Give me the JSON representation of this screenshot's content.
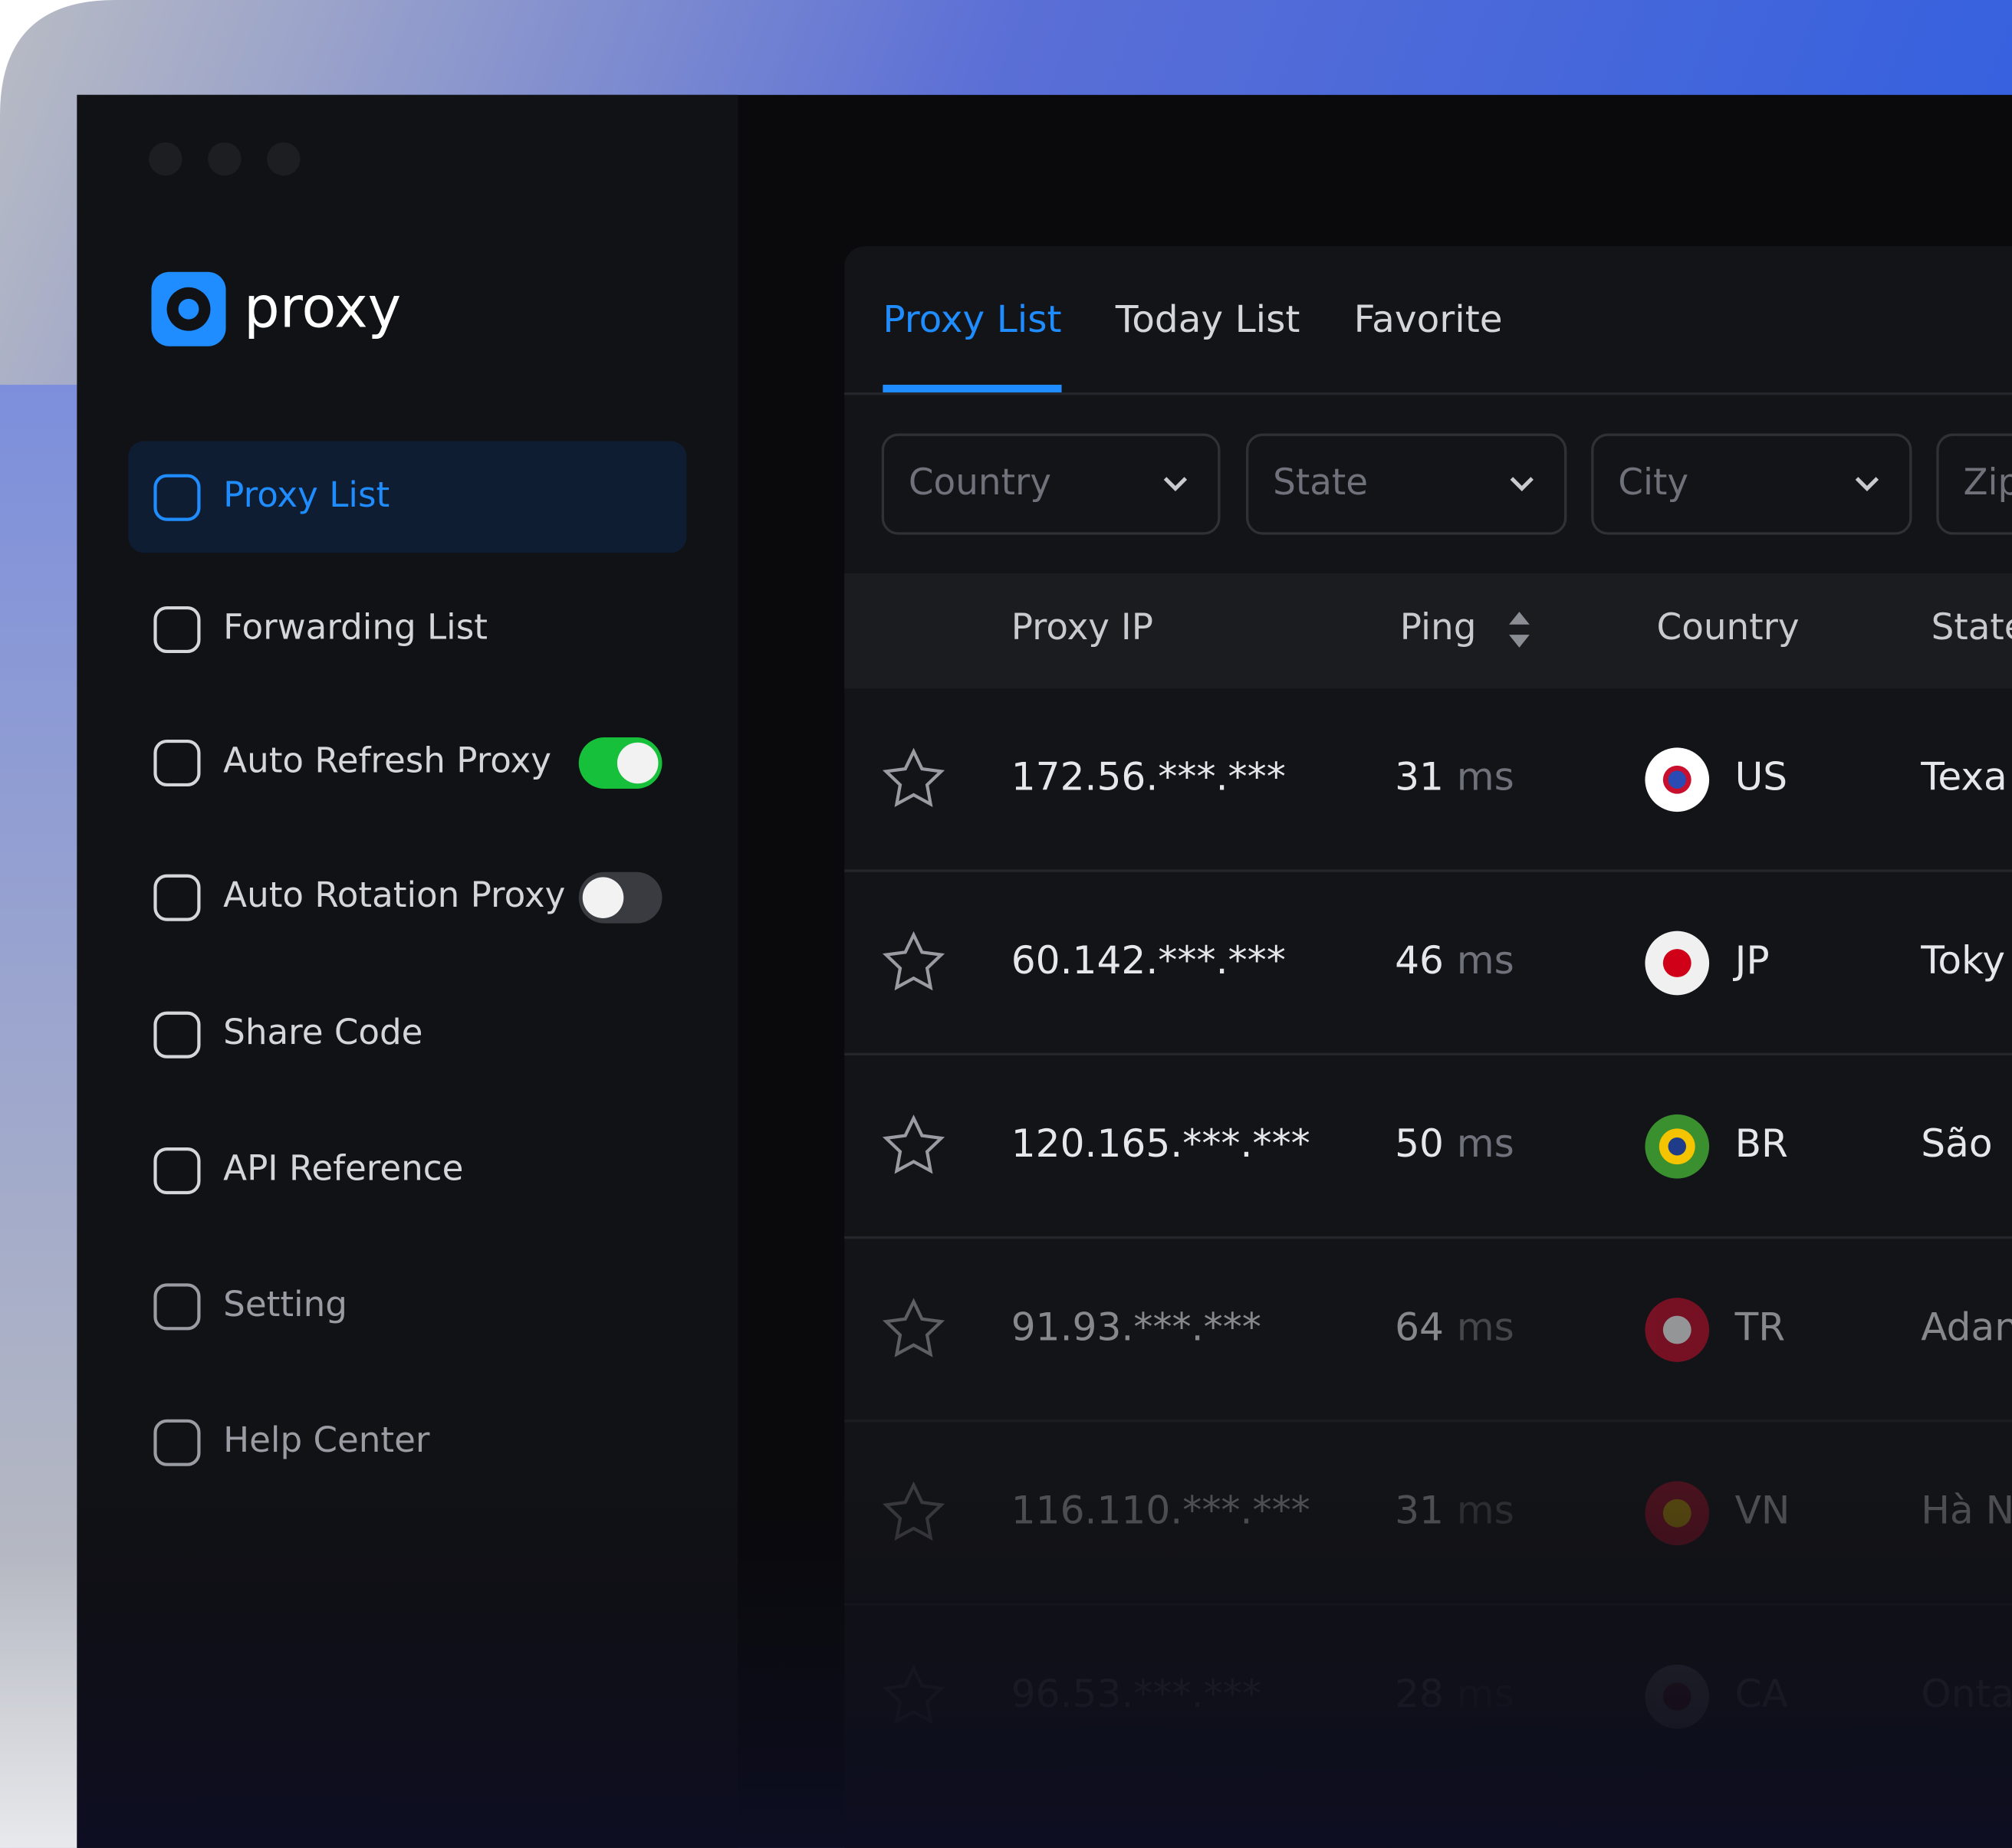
{
  "logo": "proxy",
  "nav": [
    {
      "label": "Proxy List",
      "active": true
    },
    {
      "label": "Forwarding List"
    },
    {
      "label": "Auto Refresh Proxy",
      "toggle": true
    },
    {
      "label": "Auto Rotation Proxy",
      "toggle": false
    },
    {
      "label": "Share Code"
    },
    {
      "label": "API Reference"
    },
    {
      "label": "Setting"
    },
    {
      "label": "Help Center"
    }
  ],
  "tabs": [
    {
      "label": "Proxy List",
      "active": true
    },
    {
      "label": "Today List"
    },
    {
      "label": "Favorite"
    }
  ],
  "filters": [
    "Country",
    "State",
    "City",
    "Zip"
  ],
  "table": {
    "headers": [
      "Proxy IP",
      "Ping",
      "Country",
      "State"
    ],
    "ping_unit": "ms",
    "rows": [
      {
        "ip": "172.56.***.***",
        "ping": "31",
        "country": "US",
        "state": "Texa"
      },
      {
        "ip": "60.142.***.***",
        "ping": "46",
        "country": "JP",
        "state": "Toky"
      },
      {
        "ip": "120.165.***.***",
        "ping": "50",
        "country": "BR",
        "state": "São"
      },
      {
        "ip": "91.93.***.***",
        "ping": "64",
        "country": "TR",
        "state": "Adan"
      },
      {
        "ip": "116.110.***.***",
        "ping": "31",
        "country": "VN",
        "state": "Hà N"
      },
      {
        "ip": "96.53.***.***",
        "ping": "28",
        "country": "CA",
        "state": "Onta"
      }
    ]
  }
}
